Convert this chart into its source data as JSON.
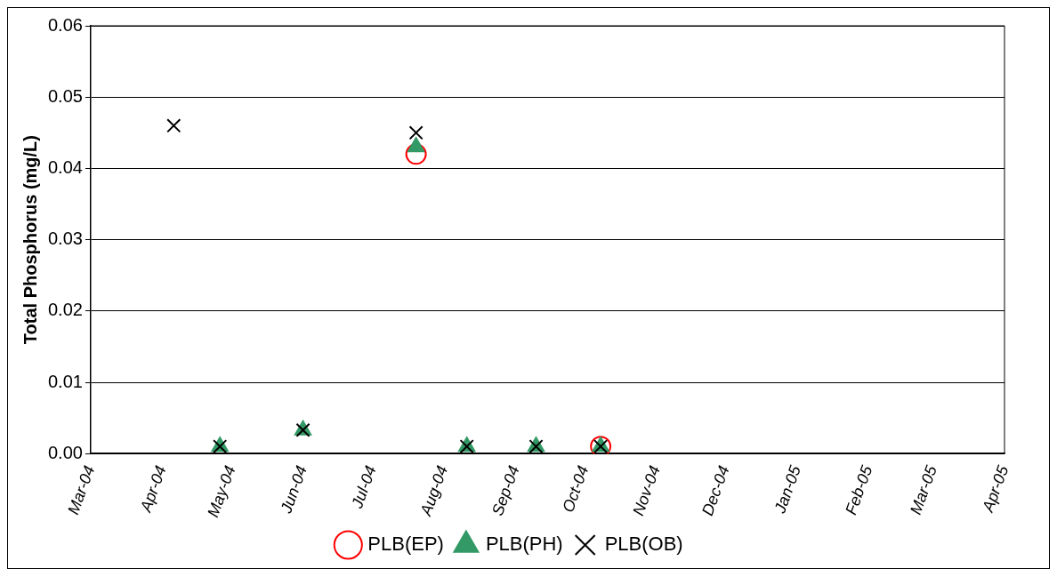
{
  "chart_data": {
    "type": "scatter",
    "ylabel": "Total Phosphorus (mg/L)",
    "xlim": [
      "2004-03-01",
      "2005-04-01"
    ],
    "xticks": [
      {
        "value": "2004-03-01",
        "label": "Mar-04"
      },
      {
        "value": "2004-04-01",
        "label": "Apr-04"
      },
      {
        "value": "2004-05-01",
        "label": "May-04"
      },
      {
        "value": "2004-06-01",
        "label": "Jun-04"
      },
      {
        "value": "2004-07-01",
        "label": "Jul-04"
      },
      {
        "value": "2004-08-01",
        "label": "Aug-04"
      },
      {
        "value": "2004-09-01",
        "label": "Sep-04"
      },
      {
        "value": "2004-10-01",
        "label": "Oct-04"
      },
      {
        "value": "2004-11-01",
        "label": "Nov-04"
      },
      {
        "value": "2004-12-01",
        "label": "Dec-04"
      },
      {
        "value": "2005-01-01",
        "label": "Jan-05"
      },
      {
        "value": "2005-02-01",
        "label": "Feb-05"
      },
      {
        "value": "2005-03-01",
        "label": "Mar-05"
      },
      {
        "value": "2005-04-01",
        "label": "Apr-05"
      }
    ],
    "ylim": [
      0,
      0.06
    ],
    "yticks": [
      {
        "value": 0,
        "label": "0.00"
      },
      {
        "value": 0.01,
        "label": "0.01"
      },
      {
        "value": 0.02,
        "label": "0.02"
      },
      {
        "value": 0.03,
        "label": "0.03"
      },
      {
        "value": 0.04,
        "label": "0.04"
      },
      {
        "value": 0.05,
        "label": "0.05"
      },
      {
        "value": 0.06,
        "label": "0.06"
      }
    ],
    "grid": "y",
    "legend": "bottom",
    "series": [
      {
        "name": "PLB(EP)",
        "color": "#ff0000",
        "marker": "circle",
        "x": [
          "2004-07-20",
          "2004-10-08"
        ],
        "values": [
          0.042,
          0.001
        ]
      },
      {
        "name": "PLB(PH)",
        "color": "#339966",
        "marker": "triangle",
        "x": [
          "2004-04-26",
          "2004-06-01",
          "2004-07-20",
          "2004-08-11",
          "2004-09-10",
          "2004-10-08"
        ],
        "values": [
          0.001,
          0.0033,
          0.043,
          0.001,
          0.001,
          0.001
        ]
      },
      {
        "name": "PLB(OB)",
        "color": "#000000",
        "marker": "cross",
        "x": [
          "2004-04-06",
          "2004-04-26",
          "2004-06-01",
          "2004-07-20",
          "2004-08-11",
          "2004-09-10",
          "2004-10-08"
        ],
        "values": [
          0.046,
          0.001,
          0.0033,
          0.045,
          0.001,
          0.001,
          0.001
        ]
      }
    ]
  }
}
